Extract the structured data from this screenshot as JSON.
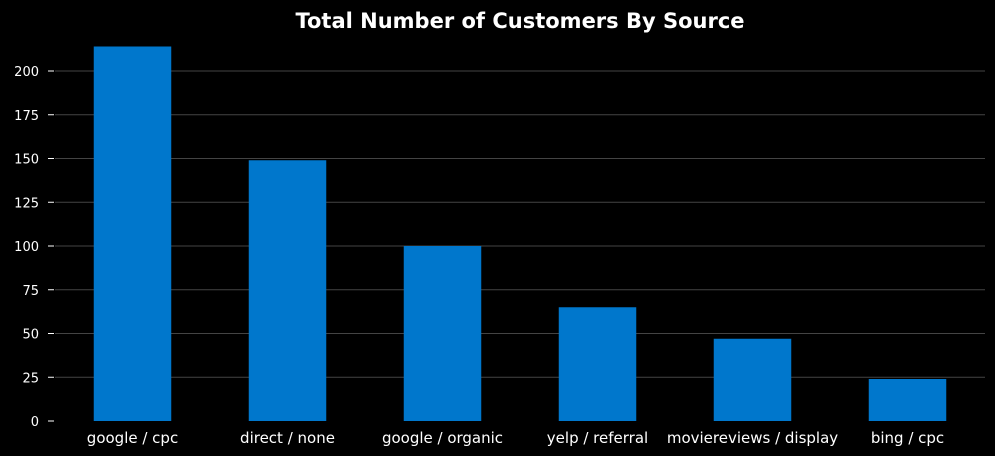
{
  "chart_data": {
    "type": "bar",
    "title": "Total Number of Customers By Source",
    "xlabel": "",
    "ylabel": "",
    "categories": [
      "google / cpc",
      "direct / none",
      "google / organic",
      "yelp / referral",
      "moviereviews / display",
      "bing / cpc"
    ],
    "values": [
      214,
      149,
      100,
      65,
      47,
      24
    ],
    "ylim": [
      0,
      220
    ],
    "yticks": [
      0,
      25,
      50,
      75,
      100,
      125,
      150,
      175,
      200
    ],
    "grid": "y",
    "legend": "none",
    "colors": {
      "background": "#000000",
      "bar": "#0077cc",
      "grid": "#444444",
      "text": "#ffffff"
    }
  }
}
